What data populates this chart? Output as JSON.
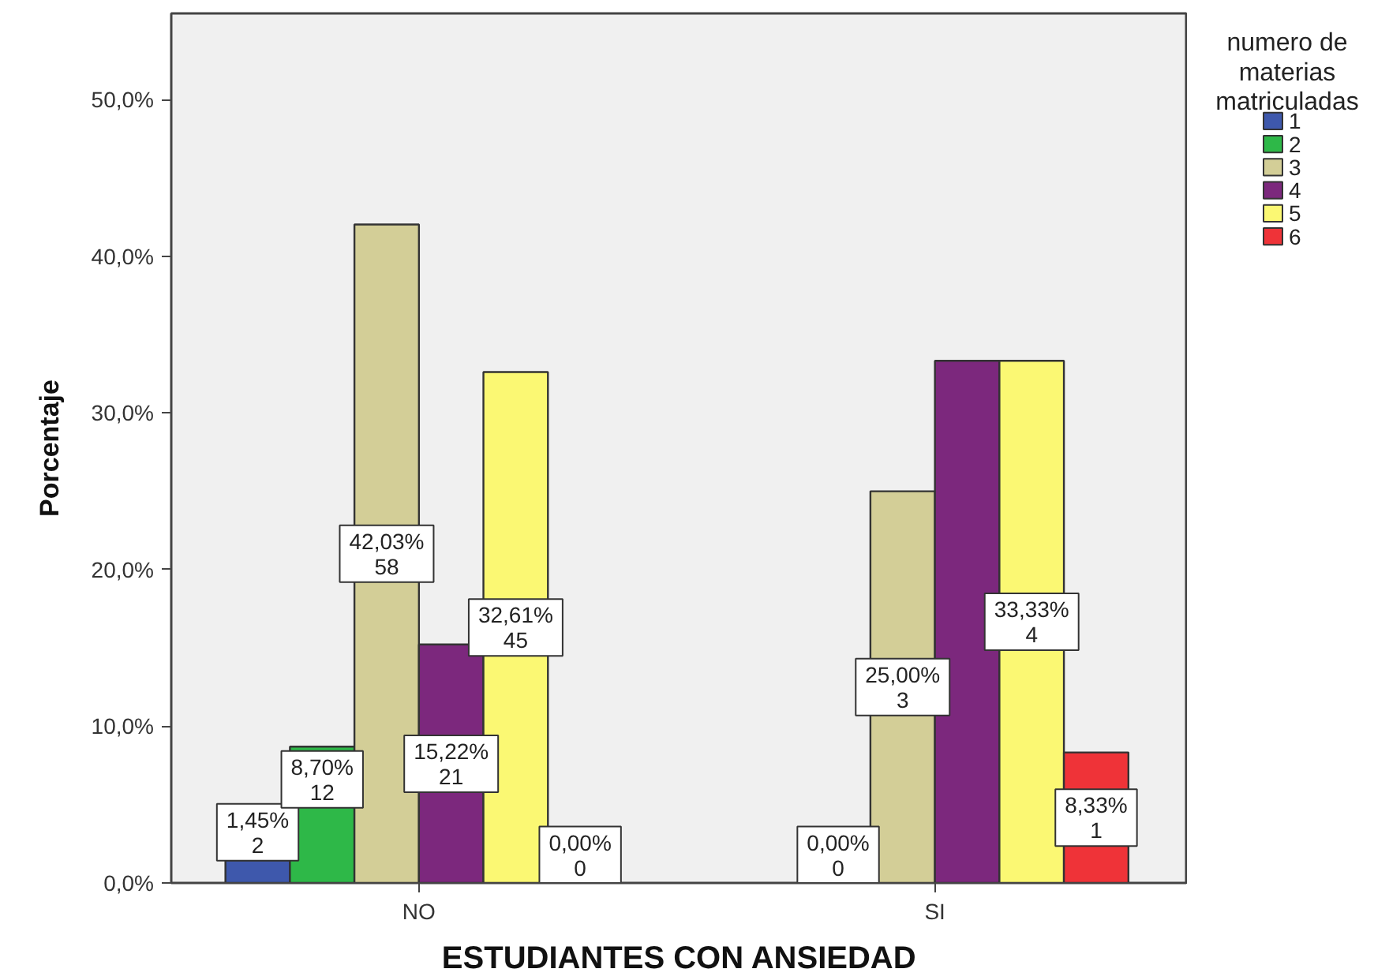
{
  "chart_data": {
    "type": "bar",
    "xlabel": "ESTUDIANTES CON ANSIEDAD",
    "ylabel": "Porcentaje",
    "legend_title": "numero de materias matriculadas",
    "categories": [
      "NO",
      "SI"
    ],
    "series": [
      {
        "name": "1",
        "color": "#3e58ac",
        "values": [
          1.45,
          null
        ],
        "value_labels": [
          "1,45%\n2",
          null
        ]
      },
      {
        "name": "2",
        "color": "#2eb848",
        "values": [
          8.7,
          0.0
        ],
        "value_labels": [
          "8,70%\n12",
          "0,00%\n0"
        ]
      },
      {
        "name": "3",
        "color": "#d3ce97",
        "values": [
          42.03,
          25.0
        ],
        "value_labels": [
          "42,03%\n58",
          "25,00%\n3"
        ]
      },
      {
        "name": "4",
        "color": "#7c287d",
        "values": [
          15.22,
          33.33
        ],
        "value_labels": [
          "15,22%\n21",
          null
        ]
      },
      {
        "name": "5",
        "color": "#fbf873",
        "values": [
          32.61,
          33.33
        ],
        "value_labels": [
          "32,61%\n45",
          "33,33%\n4"
        ]
      },
      {
        "name": "6",
        "color": "#ef3338",
        "values": [
          0.0,
          8.33
        ],
        "value_labels": [
          "0,00%\n0",
          "8,33%\n1"
        ]
      }
    ],
    "ylim": [
      0,
      55.5
    ],
    "yticks": [
      {
        "value": 0,
        "label": "0,0%"
      },
      {
        "value": 10,
        "label": "10,0%"
      },
      {
        "value": 20,
        "label": "20,0%"
      },
      {
        "value": 30,
        "label": "30,0%"
      },
      {
        "value": 40,
        "label": "40,0%"
      },
      {
        "value": 50,
        "label": "50,0%"
      }
    ],
    "legend": "right",
    "grid": false
  }
}
